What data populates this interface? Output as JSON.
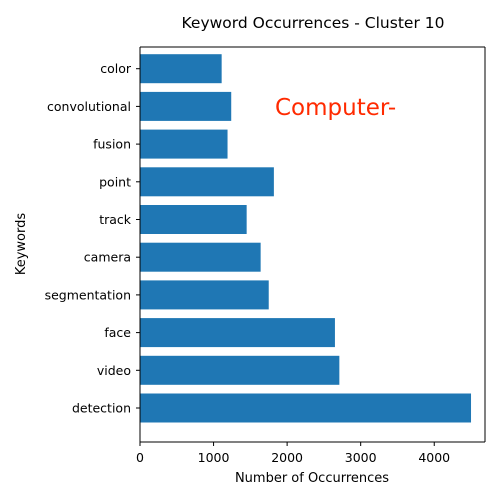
{
  "chart_data": {
    "type": "bar",
    "orientation": "horizontal",
    "title": "Keyword Occurrences - Cluster 10",
    "xlabel": "Number of Occurrences",
    "ylabel": "Keywords",
    "categories": [
      "detection",
      "video",
      "face",
      "segmentation",
      "camera",
      "track",
      "point",
      "fusion",
      "convolutional",
      "color"
    ],
    "values": [
      4500,
      2710,
      2650,
      1750,
      1640,
      1450,
      1820,
      1190,
      1240,
      1110
    ],
    "xlim": [
      0,
      4690
    ],
    "xticks": [
      0,
      1000,
      2000,
      3000,
      4000
    ],
    "grid": false,
    "bar_color": "#1f77b4",
    "annotation": {
      "text": "Computer-",
      "color": "#ff2a00"
    }
  }
}
